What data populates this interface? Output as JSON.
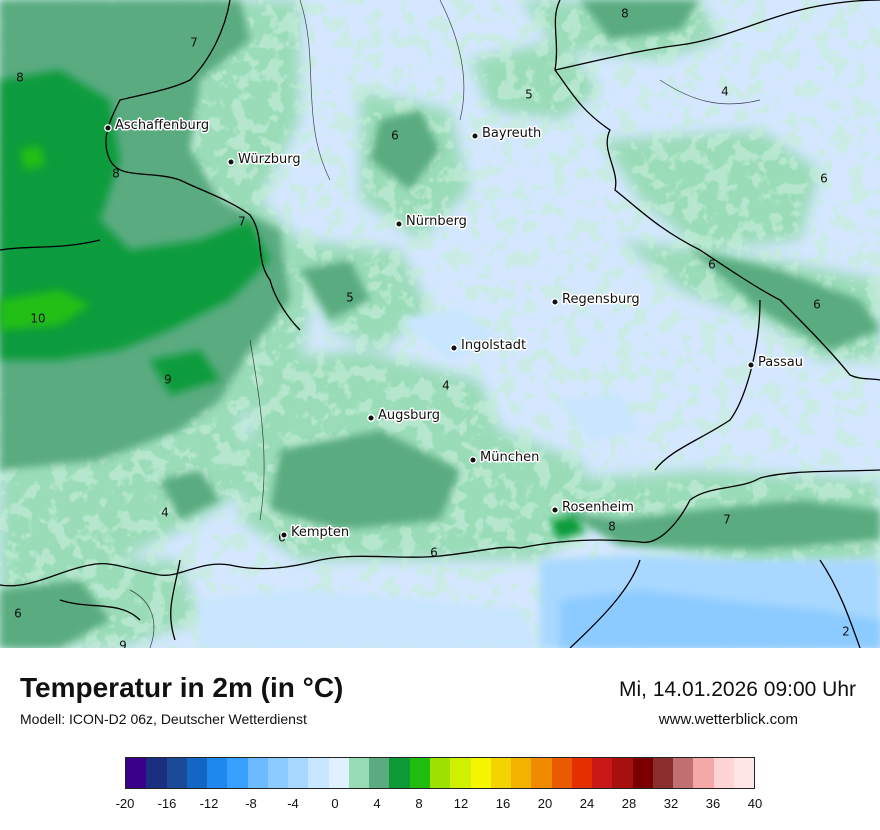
{
  "map": {
    "title": "Temperatur in 2m (in °C)",
    "subtitle": "Modell: ICON-D2 06z, Deutscher Wetterdienst",
    "datetime": "Mi, 14.01.2026 09:00 Uhr",
    "website": "www.wetterblick.com",
    "cities": [
      {
        "name": "Aschaffenburg"
      },
      {
        "name": "Würzburg"
      },
      {
        "name": "Bayreuth"
      },
      {
        "name": "Nürnberg"
      },
      {
        "name": "Regensburg"
      },
      {
        "name": "Ingolstadt"
      },
      {
        "name": "Passau"
      },
      {
        "name": "Augsburg"
      },
      {
        "name": "München"
      },
      {
        "name": "Rosenheim"
      },
      {
        "name": "Kempten"
      }
    ],
    "isoline_labels": [
      "8",
      "7",
      "8",
      "5",
      "4",
      "6",
      "8",
      "7",
      "6",
      "5",
      "6",
      "6",
      "10",
      "9",
      "4",
      "4",
      "6",
      "8",
      "7",
      "6",
      "9",
      "2",
      "6"
    ],
    "legend": {
      "colors": [
        "#3b0089",
        "#1a2f80",
        "#1a4a98",
        "#1466c4",
        "#1e88ef",
        "#3aa0ff",
        "#6cbaff",
        "#8ccbff",
        "#a8d8ff",
        "#c8e6ff",
        "#dff0ff",
        "#98dcb6",
        "#5aab80",
        "#0f9a38",
        "#20bd0e",
        "#9ee000",
        "#cff000",
        "#f6f600",
        "#f4d400",
        "#f2b300",
        "#f08a00",
        "#ea5a00",
        "#e42f00",
        "#c81818",
        "#a81010",
        "#7a0000",
        "#8a2e2e",
        "#c07070",
        "#f4a8a8",
        "#ffd4d4",
        "#ffe6e6"
      ],
      "ticks": [
        "-20",
        "-16",
        "-12",
        "-8",
        "-4",
        "0",
        "4",
        "8",
        "12",
        "16",
        "20",
        "24",
        "28",
        "32",
        "36",
        "40"
      ]
    }
  }
}
